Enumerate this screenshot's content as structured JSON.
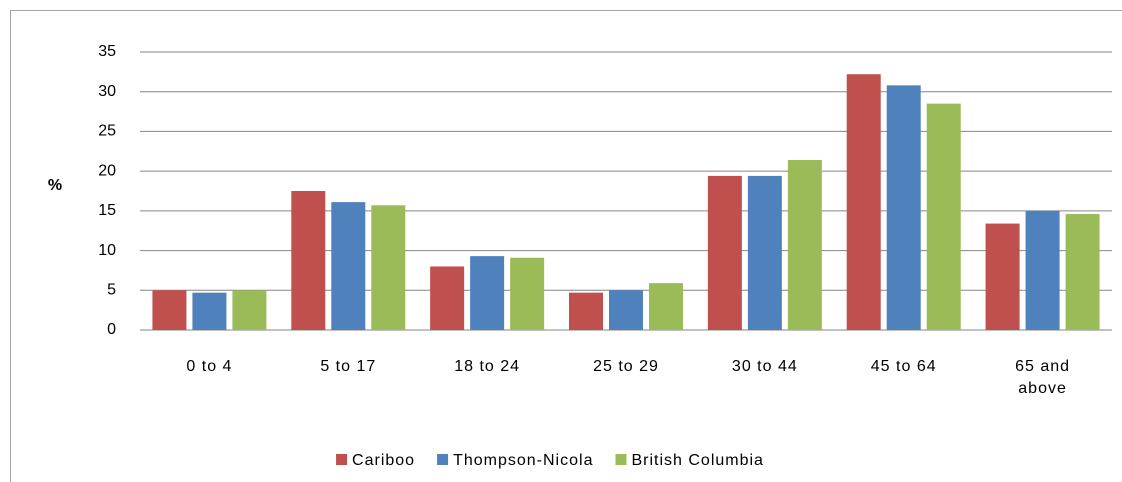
{
  "chart_data": {
    "type": "bar",
    "y_label": "%",
    "categories": [
      "0 to 4",
      "5 to 17",
      "18 to 24",
      "25 to 29",
      "30 to 44",
      "45 to 64",
      "65 and above"
    ],
    "series": [
      {
        "name": "Cariboo",
        "color": "#c0504d",
        "values": [
          5.0,
          17.5,
          8.0,
          4.7,
          19.4,
          32.2,
          13.4
        ]
      },
      {
        "name": "Thompson-Nicola",
        "color": "#4f81bd",
        "values": [
          4.7,
          16.1,
          9.3,
          5.0,
          19.4,
          30.8,
          15.0
        ]
      },
      {
        "name": "British Columbia",
        "color": "#9bbb59",
        "values": [
          5.0,
          15.7,
          9.1,
          5.9,
          21.4,
          28.5,
          14.6
        ]
      }
    ],
    "ylim": [
      0,
      35
    ],
    "yticks": [
      0,
      5,
      10,
      15,
      20,
      25,
      30,
      35
    ],
    "grid": true,
    "legend": "bottom"
  }
}
